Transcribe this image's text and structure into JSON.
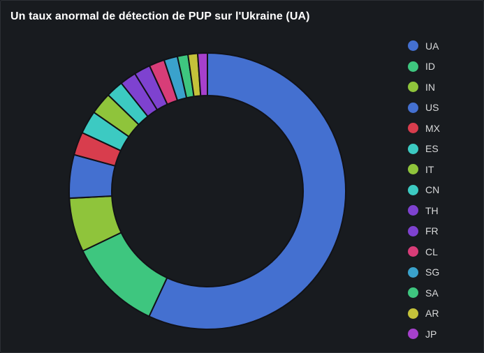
{
  "panel": {
    "title": "Un taux anormal de détection de PUP sur l'Ukraine (UA)"
  },
  "chart_data": {
    "type": "pie",
    "variant": "donut",
    "title": "Un taux anormal de détection de PUP sur l'Ukraine (UA)",
    "legend_position": "right",
    "categories": [
      "UA",
      "ID",
      "IN",
      "US",
      "MX",
      "ES",
      "IT",
      "CN",
      "TH",
      "FR",
      "CL",
      "SG",
      "SA",
      "AR",
      "JP"
    ],
    "values": [
      50.5,
      9.7,
      5.6,
      4.5,
      2.4,
      2.4,
      2.3,
      1.8,
      1.7,
      1.7,
      1.6,
      1.4,
      1.1,
      1.0,
      1.0
    ],
    "colors": [
      "#4470d0",
      "#3ec67f",
      "#8fc43b",
      "#4470d0",
      "#d83d4d",
      "#3ccac2",
      "#8fc43b",
      "#3ccac2",
      "#7e42d0",
      "#7e42d0",
      "#d83d78",
      "#3aa2cc",
      "#3ec67f",
      "#c4c23a",
      "#a640cc"
    ]
  }
}
